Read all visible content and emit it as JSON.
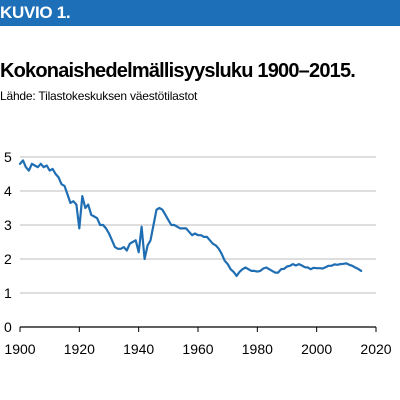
{
  "header": {
    "banner_label": "KUVIO 1.",
    "title": "Kokonaishedelmällisyysluku 1900–2015.",
    "source": "Lähde: Tilastokeskuksen väestötilastot"
  },
  "colors": {
    "banner": "#1d6fb8",
    "line": "#1f6eb3",
    "grid": "#bdbdbd"
  },
  "chart_data": {
    "type": "line",
    "title": "Kokonaishedelmällisyysluku 1900–2015.",
    "xlabel": "",
    "ylabel": "",
    "xlim": [
      1900,
      2020
    ],
    "ylim": [
      0,
      5
    ],
    "xticks": [
      1900,
      1920,
      1940,
      1960,
      1980,
      2000,
      2020
    ],
    "yticks": [
      0,
      1,
      2,
      3,
      4,
      5
    ],
    "grid": "horizontal",
    "series": [
      {
        "x": [
          1900,
          1901,
          1902,
          1903,
          1904,
          1905,
          1906,
          1907,
          1908,
          1909,
          1910,
          1911,
          1912,
          1913,
          1914,
          1915,
          1916,
          1917,
          1918,
          1919,
          1920,
          1921,
          1922,
          1923,
          1924,
          1925,
          1926,
          1927,
          1928,
          1929,
          1930,
          1931,
          1932,
          1933,
          1934,
          1935,
          1936,
          1937,
          1938,
          1939,
          1940,
          1941,
          1942,
          1943,
          1944,
          1945,
          1946,
          1947,
          1948,
          1949,
          1950,
          1951,
          1952,
          1953,
          1954,
          1955,
          1956,
          1957,
          1958,
          1959,
          1960,
          1961,
          1962,
          1963,
          1964,
          1965,
          1966,
          1967,
          1968,
          1969,
          1970,
          1971,
          1972,
          1973,
          1974,
          1975,
          1976,
          1977,
          1978,
          1979,
          1980,
          1981,
          1982,
          1983,
          1984,
          1985,
          1986,
          1987,
          1988,
          1989,
          1990,
          1991,
          1992,
          1993,
          1994,
          1995,
          1996,
          1997,
          1998,
          1999,
          2000,
          2001,
          2002,
          2003,
          2004,
          2005,
          2006,
          2007,
          2008,
          2009,
          2010,
          2011,
          2012,
          2013,
          2014,
          2015
        ],
        "values": [
          4.8,
          4.9,
          4.7,
          4.6,
          4.8,
          4.75,
          4.7,
          4.8,
          4.7,
          4.75,
          4.6,
          4.65,
          4.5,
          4.4,
          4.2,
          4.15,
          3.9,
          3.65,
          3.7,
          3.6,
          2.9,
          3.85,
          3.5,
          3.6,
          3.3,
          3.25,
          3.2,
          3.0,
          3.0,
          2.9,
          2.75,
          2.55,
          2.35,
          2.3,
          2.3,
          2.35,
          2.25,
          2.45,
          2.5,
          2.55,
          2.2,
          2.95,
          2.0,
          2.4,
          2.55,
          3.0,
          3.45,
          3.5,
          3.45,
          3.3,
          3.15,
          3.0,
          3.0,
          2.95,
          2.9,
          2.9,
          2.9,
          2.8,
          2.7,
          2.75,
          2.7,
          2.7,
          2.65,
          2.65,
          2.55,
          2.45,
          2.4,
          2.3,
          2.15,
          1.95,
          1.85,
          1.7,
          1.62,
          1.5,
          1.62,
          1.7,
          1.75,
          1.7,
          1.65,
          1.65,
          1.63,
          1.65,
          1.72,
          1.75,
          1.7,
          1.65,
          1.6,
          1.6,
          1.7,
          1.71,
          1.78,
          1.8,
          1.85,
          1.81,
          1.85,
          1.81,
          1.76,
          1.75,
          1.7,
          1.74,
          1.73,
          1.73,
          1.72,
          1.76,
          1.8,
          1.8,
          1.84,
          1.83,
          1.85,
          1.86,
          1.87,
          1.83,
          1.8,
          1.75,
          1.71,
          1.65
        ]
      }
    ]
  }
}
